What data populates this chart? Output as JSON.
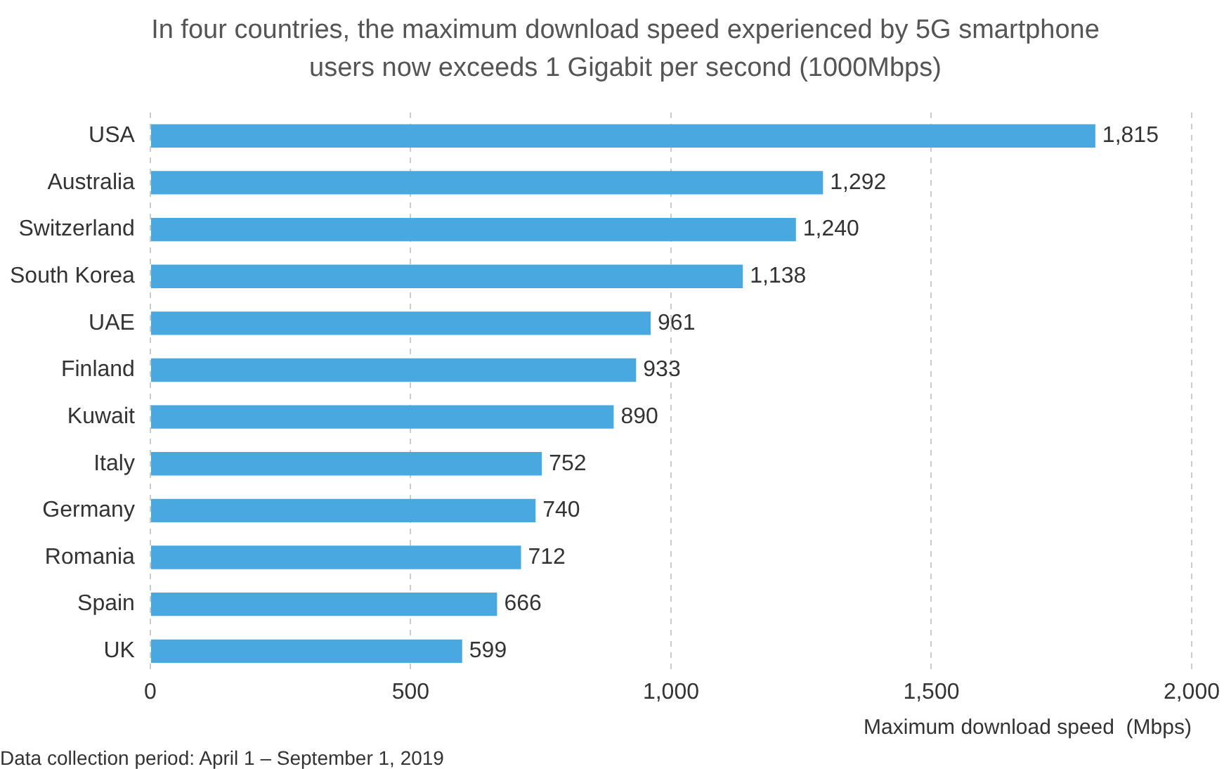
{
  "chart_data": {
    "type": "bar",
    "orientation": "horizontal",
    "title": "In four countries, the maximum download speed experienced by 5G smartphone users now exceeds 1 Gigabit per second  (1000Mbps)",
    "categories": [
      "USA",
      "Australia",
      "Switzerland",
      "South Korea",
      "UAE",
      "Finland",
      "Kuwait",
      "Italy",
      "Germany",
      "Romania",
      "Spain",
      "UK"
    ],
    "values": [
      1815,
      1292,
      1240,
      1138,
      961,
      933,
      890,
      752,
      740,
      712,
      666,
      599
    ],
    "value_labels": [
      "1,815",
      "1,292",
      "1,240",
      "1,138",
      "961",
      "933",
      "890",
      "752",
      "740",
      "712",
      "666",
      "599"
    ],
    "color": "#4aa8e0",
    "xlim": [
      0,
      2000
    ],
    "xticks": [
      0,
      500,
      {
        "value": 1000,
        "label": "1,000"
      },
      {
        "value": 1500,
        "label": "1,500"
      },
      {
        "value": 2000,
        "label": "2,000"
      }
    ],
    "xlabel": "Maximum download speed  (Mbps)",
    "grid": "x",
    "legend": false,
    "annotations": [
      "Data collection period: April 1 – September 1, 2019"
    ]
  }
}
